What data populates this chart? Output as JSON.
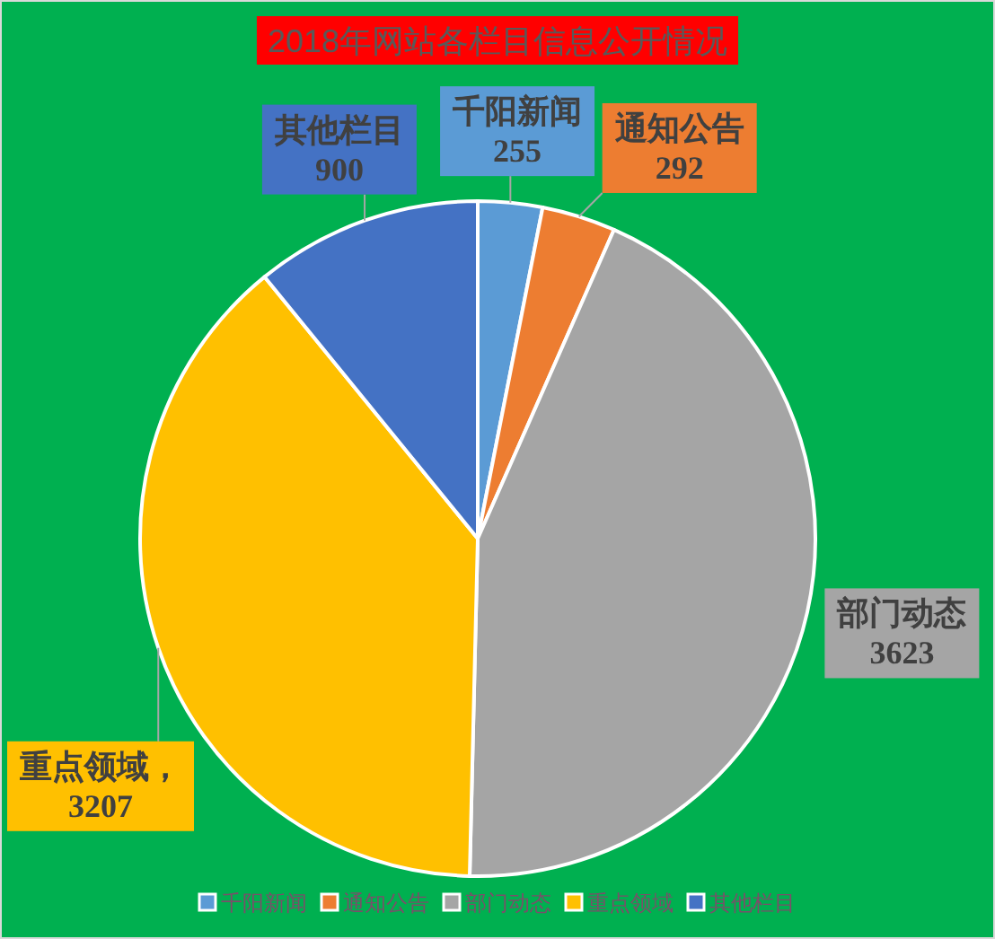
{
  "chart_data": {
    "type": "pie",
    "title": "2018年网站各栏目信息公开情况",
    "categories": [
      "千阳新闻",
      "通知公告",
      "部门动态",
      "重点领域",
      "其他栏目"
    ],
    "values": [
      255,
      292,
      3623,
      3207,
      900
    ],
    "colors": [
      "#5b9bd5",
      "#ed7d31",
      "#a5a5a5",
      "#ffc000",
      "#4472c4"
    ],
    "value_labels": [
      "千阳新闻\n255",
      "通知公告\n292",
      "部门动态\n3623",
      "重点领域，\n3207",
      "其他栏目\n900"
    ],
    "legend": "bottom"
  }
}
